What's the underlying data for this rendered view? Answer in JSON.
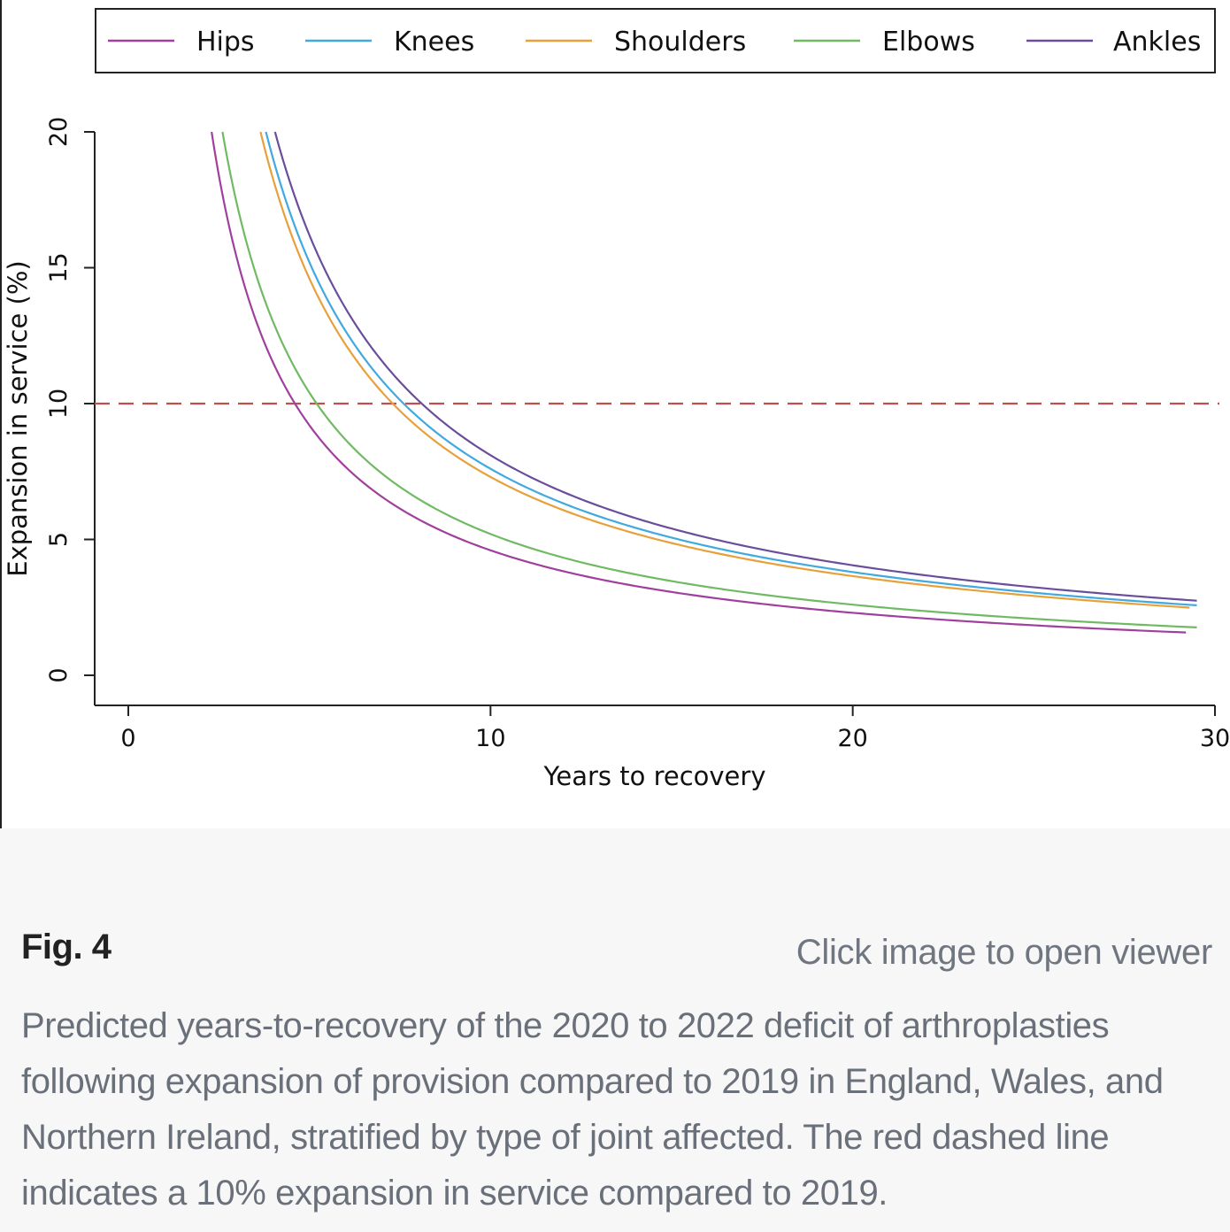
{
  "figure": {
    "label": "Fig. 4",
    "open_viewer": "Click image to open viewer",
    "caption": "Predicted years-to-recovery of the 2020 to 2022 deficit of arthroplasties following expansion of provision compared to 2019 in England, Wales, and Northern Ireland, stratified by type of joint affected. The red dashed line indicates a 10% expansion in service compared to 2019."
  },
  "chart_data": {
    "type": "line",
    "title": "",
    "xlabel": "Years to recovery",
    "ylabel": "Expansion in service (%)",
    "xlim": [
      -1,
      30
    ],
    "ylim": [
      -1.1,
      20
    ],
    "xticks": [
      0,
      10,
      20,
      30
    ],
    "yticks": [
      0,
      5,
      10,
      15,
      20
    ],
    "grid": false,
    "legend_position": "top",
    "reference_line": {
      "y": 10,
      "color": "#c0504d",
      "style": "dashed"
    },
    "series": [
      {
        "name": "Hips",
        "color": "#a0409e",
        "k": 46,
        "x_end": 29.2
      },
      {
        "name": "Knees",
        "color": "#3fa9e0",
        "k": 76,
        "x_end": 29.5
      },
      {
        "name": "Shoulders",
        "color": "#e8a03a",
        "k": 73,
        "x_end": 29.3
      },
      {
        "name": "Elbows",
        "color": "#6fba62",
        "k": 52,
        "x_end": 29.5
      },
      {
        "name": "Ankles",
        "color": "#6a4e9c",
        "k": 81,
        "x_end": 29.5
      }
    ],
    "model": "expansion = k / years"
  }
}
